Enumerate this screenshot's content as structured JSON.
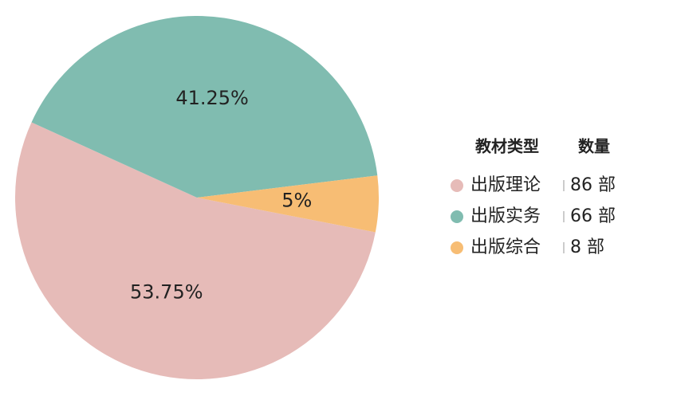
{
  "chart_data": {
    "type": "pie",
    "categories": [
      "出版理论",
      "出版实务",
      "出版综合"
    ],
    "values": [
      53.75,
      41.25,
      5
    ],
    "value_labels": [
      "53.75%",
      "41.25%",
      "5%"
    ],
    "colors": [
      "#e6bbb8",
      "#80bcb0",
      "#f7bd74"
    ],
    "legend_headers": [
      "教材类型",
      "数量"
    ],
    "counts": [
      86,
      66,
      8
    ],
    "count_labels": [
      "86 部",
      "66 部",
      "8 部"
    ]
  }
}
